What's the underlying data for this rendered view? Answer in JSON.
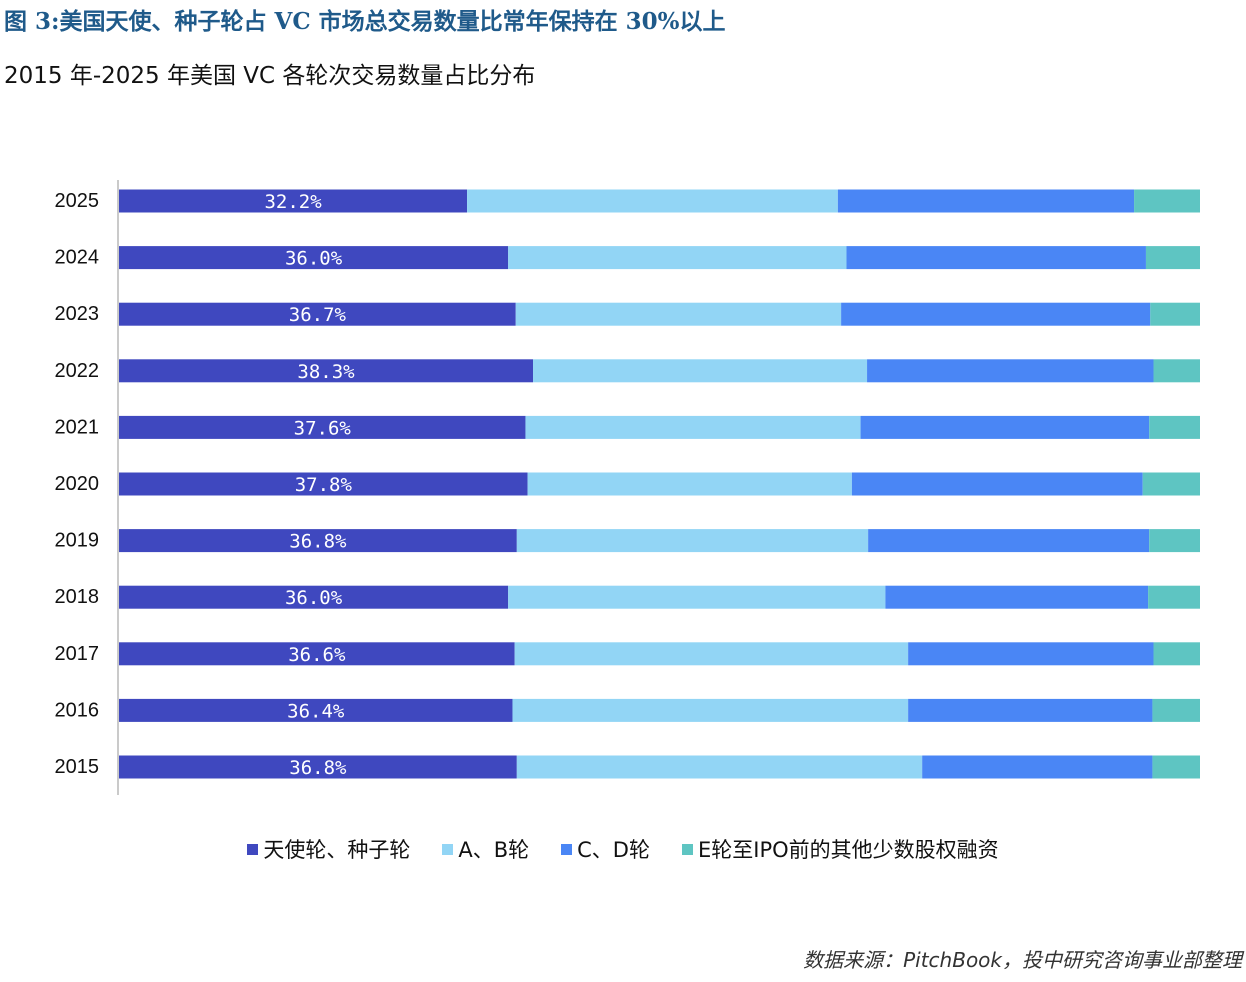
{
  "figure_title": "图 3:美国天使、种子轮占 VC 市场总交易数量比常年保持在 30%以上",
  "source": "数据来源：PitchBook，投中研究咨询事业部整理",
  "chart_data": {
    "type": "bar",
    "orientation": "horizontal",
    "stacked": true,
    "normalized": true,
    "title": "2015 年-2025 年美国 VC 各轮次交易数量占比分布",
    "xlabel": "",
    "ylabel": "",
    "xlim": [
      0,
      100
    ],
    "grid": false,
    "legend_position": "bottom",
    "categories": [
      "2025",
      "2024",
      "2023",
      "2022",
      "2021",
      "2020",
      "2019",
      "2018",
      "2017",
      "2016",
      "2015"
    ],
    "series": [
      {
        "name": "天使轮、种子轮",
        "color": "#3f48bf",
        "values": [
          32.2,
          36.0,
          36.7,
          38.3,
          37.6,
          37.8,
          36.8,
          36.0,
          36.6,
          36.4,
          36.8
        ],
        "data_labels": [
          "32.2%",
          "36.0%",
          "36.7%",
          "38.3%",
          "37.6%",
          "37.8%",
          "36.8%",
          "36.0%",
          "36.6%",
          "36.4%",
          "36.8%"
        ]
      },
      {
        "name": "A、B轮",
        "color": "#92d5f5",
        "values": [
          34.3,
          31.3,
          30.1,
          30.9,
          31.0,
          30.0,
          32.5,
          34.9,
          36.4,
          36.6,
          37.5
        ]
      },
      {
        "name": "C、D轮",
        "color": "#4a86f5",
        "values": [
          27.4,
          27.7,
          28.6,
          26.5,
          26.7,
          26.9,
          26.0,
          24.3,
          22.7,
          22.6,
          21.3
        ]
      },
      {
        "name": "E轮至IPO前的其他少数股权融资",
        "color": "#5ec5c2",
        "values": [
          6.1,
          5.0,
          4.6,
          4.3,
          4.7,
          5.3,
          4.7,
          4.8,
          4.3,
          4.4,
          4.4
        ]
      }
    ]
  }
}
